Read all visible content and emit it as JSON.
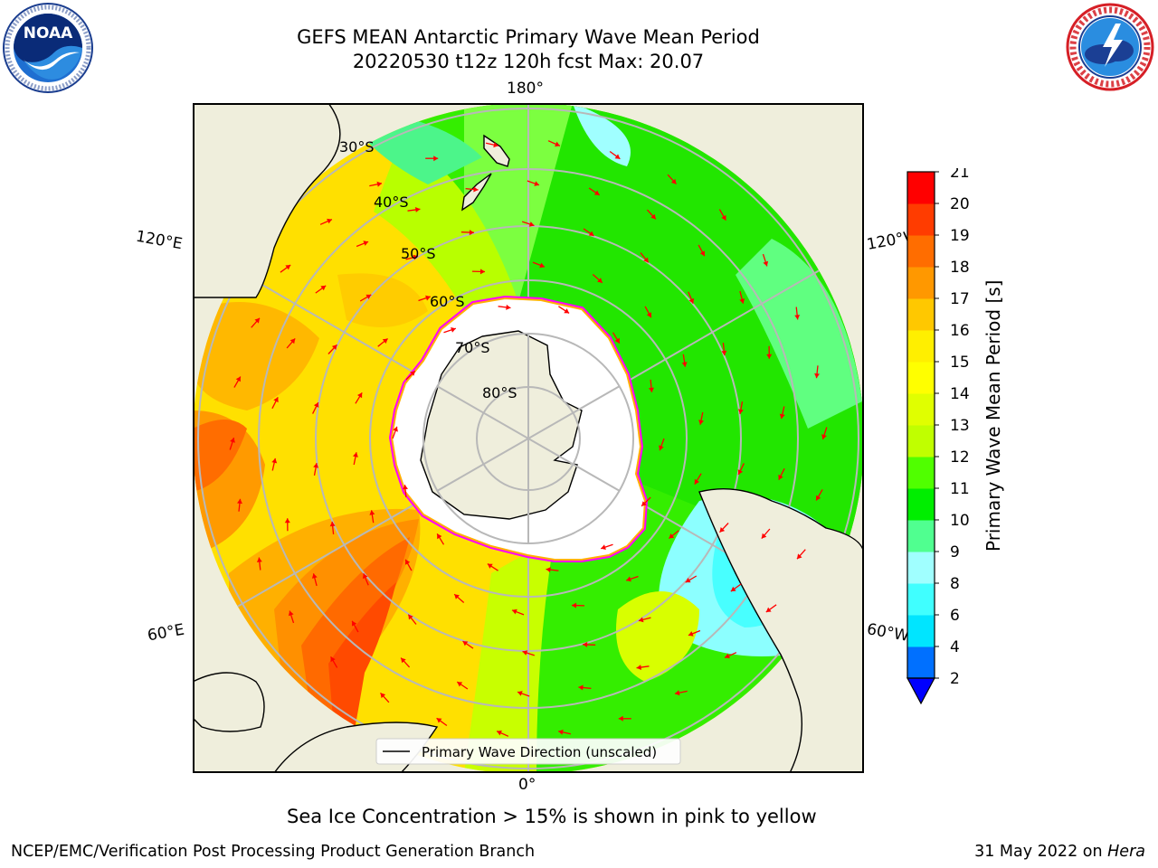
{
  "title": {
    "line1": "GEFS MEAN Antarctic Primary Wave Mean Period",
    "line2": "20220530 t12z 120h fcst   Max: 20.07"
  },
  "logos": {
    "left": {
      "name": "NOAA",
      "text": "NOAA",
      "ring_text": "NATIONAL OCEANIC AND ATMOSPHERIC ADMINISTRATION · U.S. DEPARTMENT OF COMMERCE"
    },
    "right": {
      "name": "National Weather Service",
      "ring_text": "NATIONAL WEATHER SERVICE"
    }
  },
  "map": {
    "projection": "south-polar-stereographic",
    "lat_labels": [
      "30°S",
      "40°S",
      "50°S",
      "60°S",
      "70°S",
      "80°S"
    ],
    "lon_labels": {
      "top": "180°",
      "left_upper": "120°E",
      "right_upper": "120°W",
      "left_lower": "60°E",
      "right_lower": "60°W",
      "bottom": "0°"
    },
    "legend_label": "Primary Wave Direction (unscaled)",
    "arrow_color": "#ff0000",
    "sea_ice_color": "#ff00ff",
    "land_color": "#efeedc"
  },
  "colorbar": {
    "label": "Primary Wave Mean Period [s]",
    "ticks": [
      "2",
      "4",
      "6",
      "8",
      "9",
      "10",
      "11",
      "12",
      "13",
      "14",
      "15",
      "16",
      "17",
      "18",
      "19",
      "20",
      "21"
    ],
    "colors": [
      "#0070ff",
      "#00e5ff",
      "#40ffff",
      "#a0ffff",
      "#50ff90",
      "#00ee00",
      "#50ff00",
      "#c0ff00",
      "#e0ff00",
      "#ffff00",
      "#ffef00",
      "#ffc800",
      "#ff9800",
      "#ff6d00",
      "#ff3c00",
      "#ff0000"
    ],
    "extend_color": "#0000ff"
  },
  "notes": {
    "sea_ice": "Sea Ice Concentration > 15% is shown in pink to yellow"
  },
  "footer": {
    "left": "NCEP/EMC/Verification Post Processing Product Generation Branch",
    "right_prefix": "31 May 2022 on ",
    "right_machine": "Hera"
  }
}
